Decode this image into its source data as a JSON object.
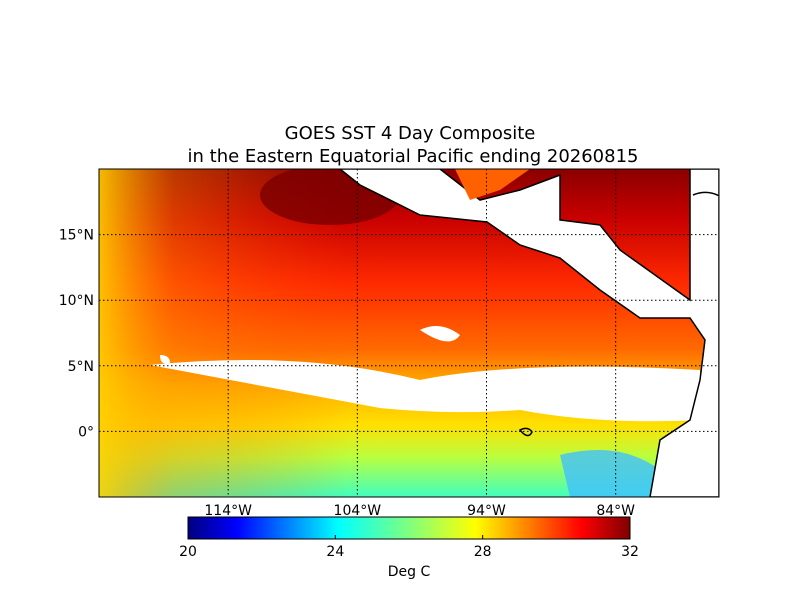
{
  "title": [
    "GOES SST 4 Day Composite",
    "in the Eastern Equatorial Pacific ending 20260815"
  ],
  "map": {
    "xlim": [
      -124,
      -76
    ],
    "ylim": [
      -5,
      20
    ],
    "xticks": [
      {
        "value": -114,
        "label": "114°W"
      },
      {
        "value": -104,
        "label": "104°W"
      },
      {
        "value": -94,
        "label": "94°W"
      },
      {
        "value": -84,
        "label": "84°W"
      }
    ],
    "yticks": [
      {
        "value": 0,
        "label": "0°"
      },
      {
        "value": 5,
        "label": "5°N"
      },
      {
        "value": 10,
        "label": "10°N"
      },
      {
        "value": 15,
        "label": "15°N"
      }
    ],
    "grid": true
  },
  "colorbar": {
    "lim": [
      20,
      32
    ],
    "ticks": [
      20,
      24,
      28,
      32
    ],
    "label": "Deg C",
    "colormap": "jet"
  }
}
